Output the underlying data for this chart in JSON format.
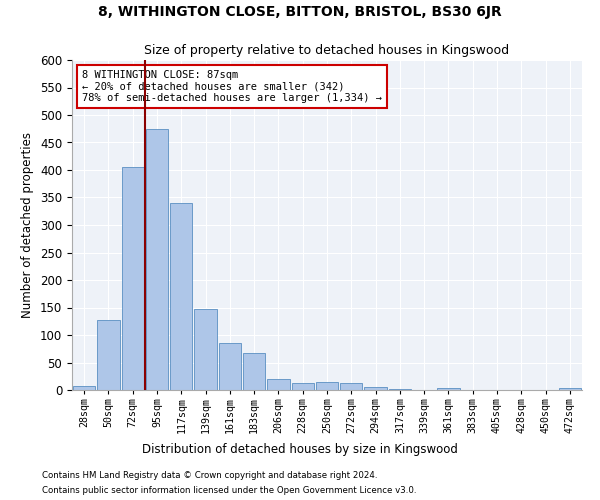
{
  "title": "8, WITHINGTON CLOSE, BITTON, BRISTOL, BS30 6JR",
  "subtitle": "Size of property relative to detached houses in Kingswood",
  "xlabel": "Distribution of detached houses by size in Kingswood",
  "ylabel": "Number of detached properties",
  "categories": [
    "28sqm",
    "50sqm",
    "72sqm",
    "95sqm",
    "117sqm",
    "139sqm",
    "161sqm",
    "183sqm",
    "206sqm",
    "228sqm",
    "250sqm",
    "272sqm",
    "294sqm",
    "317sqm",
    "339sqm",
    "361sqm",
    "383sqm",
    "405sqm",
    "428sqm",
    "450sqm",
    "472sqm"
  ],
  "values": [
    8,
    127,
    405,
    475,
    340,
    147,
    85,
    68,
    20,
    12,
    14,
    13,
    6,
    2,
    0,
    4,
    0,
    0,
    0,
    0,
    4
  ],
  "bar_color": "#aec6e8",
  "bar_edge_color": "#5a8fc2",
  "vline_color": "#8b0000",
  "annotation_text": "8 WITHINGTON CLOSE: 87sqm\n← 20% of detached houses are smaller (342)\n78% of semi-detached houses are larger (1,334) →",
  "annotation_box_color": "white",
  "annotation_box_edge_color": "#cc0000",
  "ylim": [
    0,
    600
  ],
  "yticks": [
    0,
    50,
    100,
    150,
    200,
    250,
    300,
    350,
    400,
    450,
    500,
    550,
    600
  ],
  "footer1": "Contains HM Land Registry data © Crown copyright and database right 2024.",
  "footer2": "Contains public sector information licensed under the Open Government Licence v3.0.",
  "bg_color": "#eef2f8",
  "title_fontsize": 10,
  "subtitle_fontsize": 9
}
